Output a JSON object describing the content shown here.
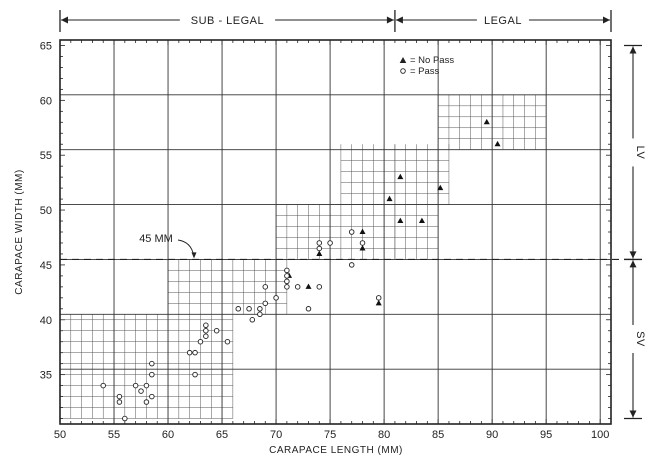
{
  "chart_data": {
    "type": "scatter",
    "xlabel": "CARAPACE LENGTH (MM)",
    "ylabel": "CARAPACE WIDTH (MM)",
    "xlim": [
      50,
      101
    ],
    "ylim": [
      30.5,
      65.5
    ],
    "xticks": [
      "50",
      "55",
      "60",
      "65",
      "70",
      "75",
      "80",
      "85",
      "90",
      "95",
      "100"
    ],
    "yticks": [
      "35",
      "40",
      "45",
      "50",
      "55",
      "60",
      "65"
    ],
    "top_bands": [
      {
        "label": "SUB - LEGAL",
        "from": 50,
        "to": 81
      },
      {
        "label": "LEGAL",
        "from": 81,
        "to": 101
      }
    ],
    "right_bands": [
      {
        "label": "LV",
        "from": 45.5,
        "to": 65
      },
      {
        "label": "SV",
        "from": 31,
        "to": 45.5
      }
    ],
    "threshold": {
      "label": "45 MM",
      "y": 45.5
    },
    "legend": [
      {
        "marker": "triangle",
        "label": "= No Pass"
      },
      {
        "marker": "circle",
        "label": "= Pass"
      }
    ],
    "legend_position": "top-right",
    "fine_grid_regions": [
      {
        "x": [
          50,
          66
        ],
        "y": [
          31,
          40.5
        ]
      },
      {
        "x": [
          60,
          71
        ],
        "y": [
          40.5,
          45.5
        ]
      },
      {
        "x": [
          70,
          81
        ],
        "y": [
          45.5,
          50.5
        ]
      },
      {
        "x": [
          76,
          81
        ],
        "y": [
          50.5,
          56
        ]
      },
      {
        "x": [
          81,
          85
        ],
        "y": [
          45.5,
          50.5
        ]
      },
      {
        "x": [
          81,
          86
        ],
        "y": [
          50.5,
          56
        ]
      },
      {
        "x": [
          85,
          95
        ],
        "y": [
          55.5,
          60.5
        ]
      }
    ],
    "series": [
      {
        "name": "No Pass",
        "marker": "triangle",
        "points": [
          [
            71.2,
            44.0
          ],
          [
            73.0,
            43.0
          ],
          [
            74.0,
            46.0
          ],
          [
            78.0,
            46.5
          ],
          [
            78.0,
            48.0
          ],
          [
            79.5,
            41.5
          ],
          [
            80.5,
            51.0
          ],
          [
            81.5,
            49.0
          ],
          [
            81.5,
            53.0
          ],
          [
            83.5,
            49.0
          ],
          [
            85.2,
            52.0
          ],
          [
            89.5,
            58.0
          ],
          [
            90.5,
            56.0
          ]
        ]
      },
      {
        "name": "Pass",
        "marker": "circle",
        "points": [
          [
            54.0,
            34.0
          ],
          [
            55.5,
            33.0
          ],
          [
            55.5,
            32.5
          ],
          [
            56.0,
            31.0
          ],
          [
            57.0,
            34.0
          ],
          [
            57.5,
            33.5
          ],
          [
            58.0,
            34.0
          ],
          [
            58.0,
            32.5
          ],
          [
            58.5,
            33.0
          ],
          [
            58.5,
            35.0
          ],
          [
            58.5,
            36.0
          ],
          [
            62.0,
            37.0
          ],
          [
            62.5,
            35.0
          ],
          [
            62.5,
            37.0
          ],
          [
            63.0,
            38.0
          ],
          [
            63.5,
            39.0
          ],
          [
            63.5,
            39.5
          ],
          [
            63.5,
            38.5
          ],
          [
            64.5,
            39.0
          ],
          [
            65.5,
            38.0
          ],
          [
            66.5,
            41.0
          ],
          [
            67.5,
            41.0
          ],
          [
            67.8,
            40.0
          ],
          [
            68.5,
            41.0
          ],
          [
            68.5,
            40.5
          ],
          [
            69.0,
            43.0
          ],
          [
            69.0,
            41.5
          ],
          [
            70.0,
            42.0
          ],
          [
            71.0,
            43.0
          ],
          [
            71.0,
            43.5
          ],
          [
            71.0,
            44.0
          ],
          [
            71.0,
            44.5
          ],
          [
            72.0,
            43.0
          ],
          [
            73.0,
            41.0
          ],
          [
            74.0,
            43.0
          ],
          [
            74.0,
            47.0
          ],
          [
            74.0,
            46.5
          ],
          [
            75.0,
            47.0
          ],
          [
            77.0,
            48.0
          ],
          [
            77.0,
            45.0
          ],
          [
            78.0,
            47.0
          ],
          [
            79.5,
            42.0
          ]
        ]
      }
    ]
  }
}
